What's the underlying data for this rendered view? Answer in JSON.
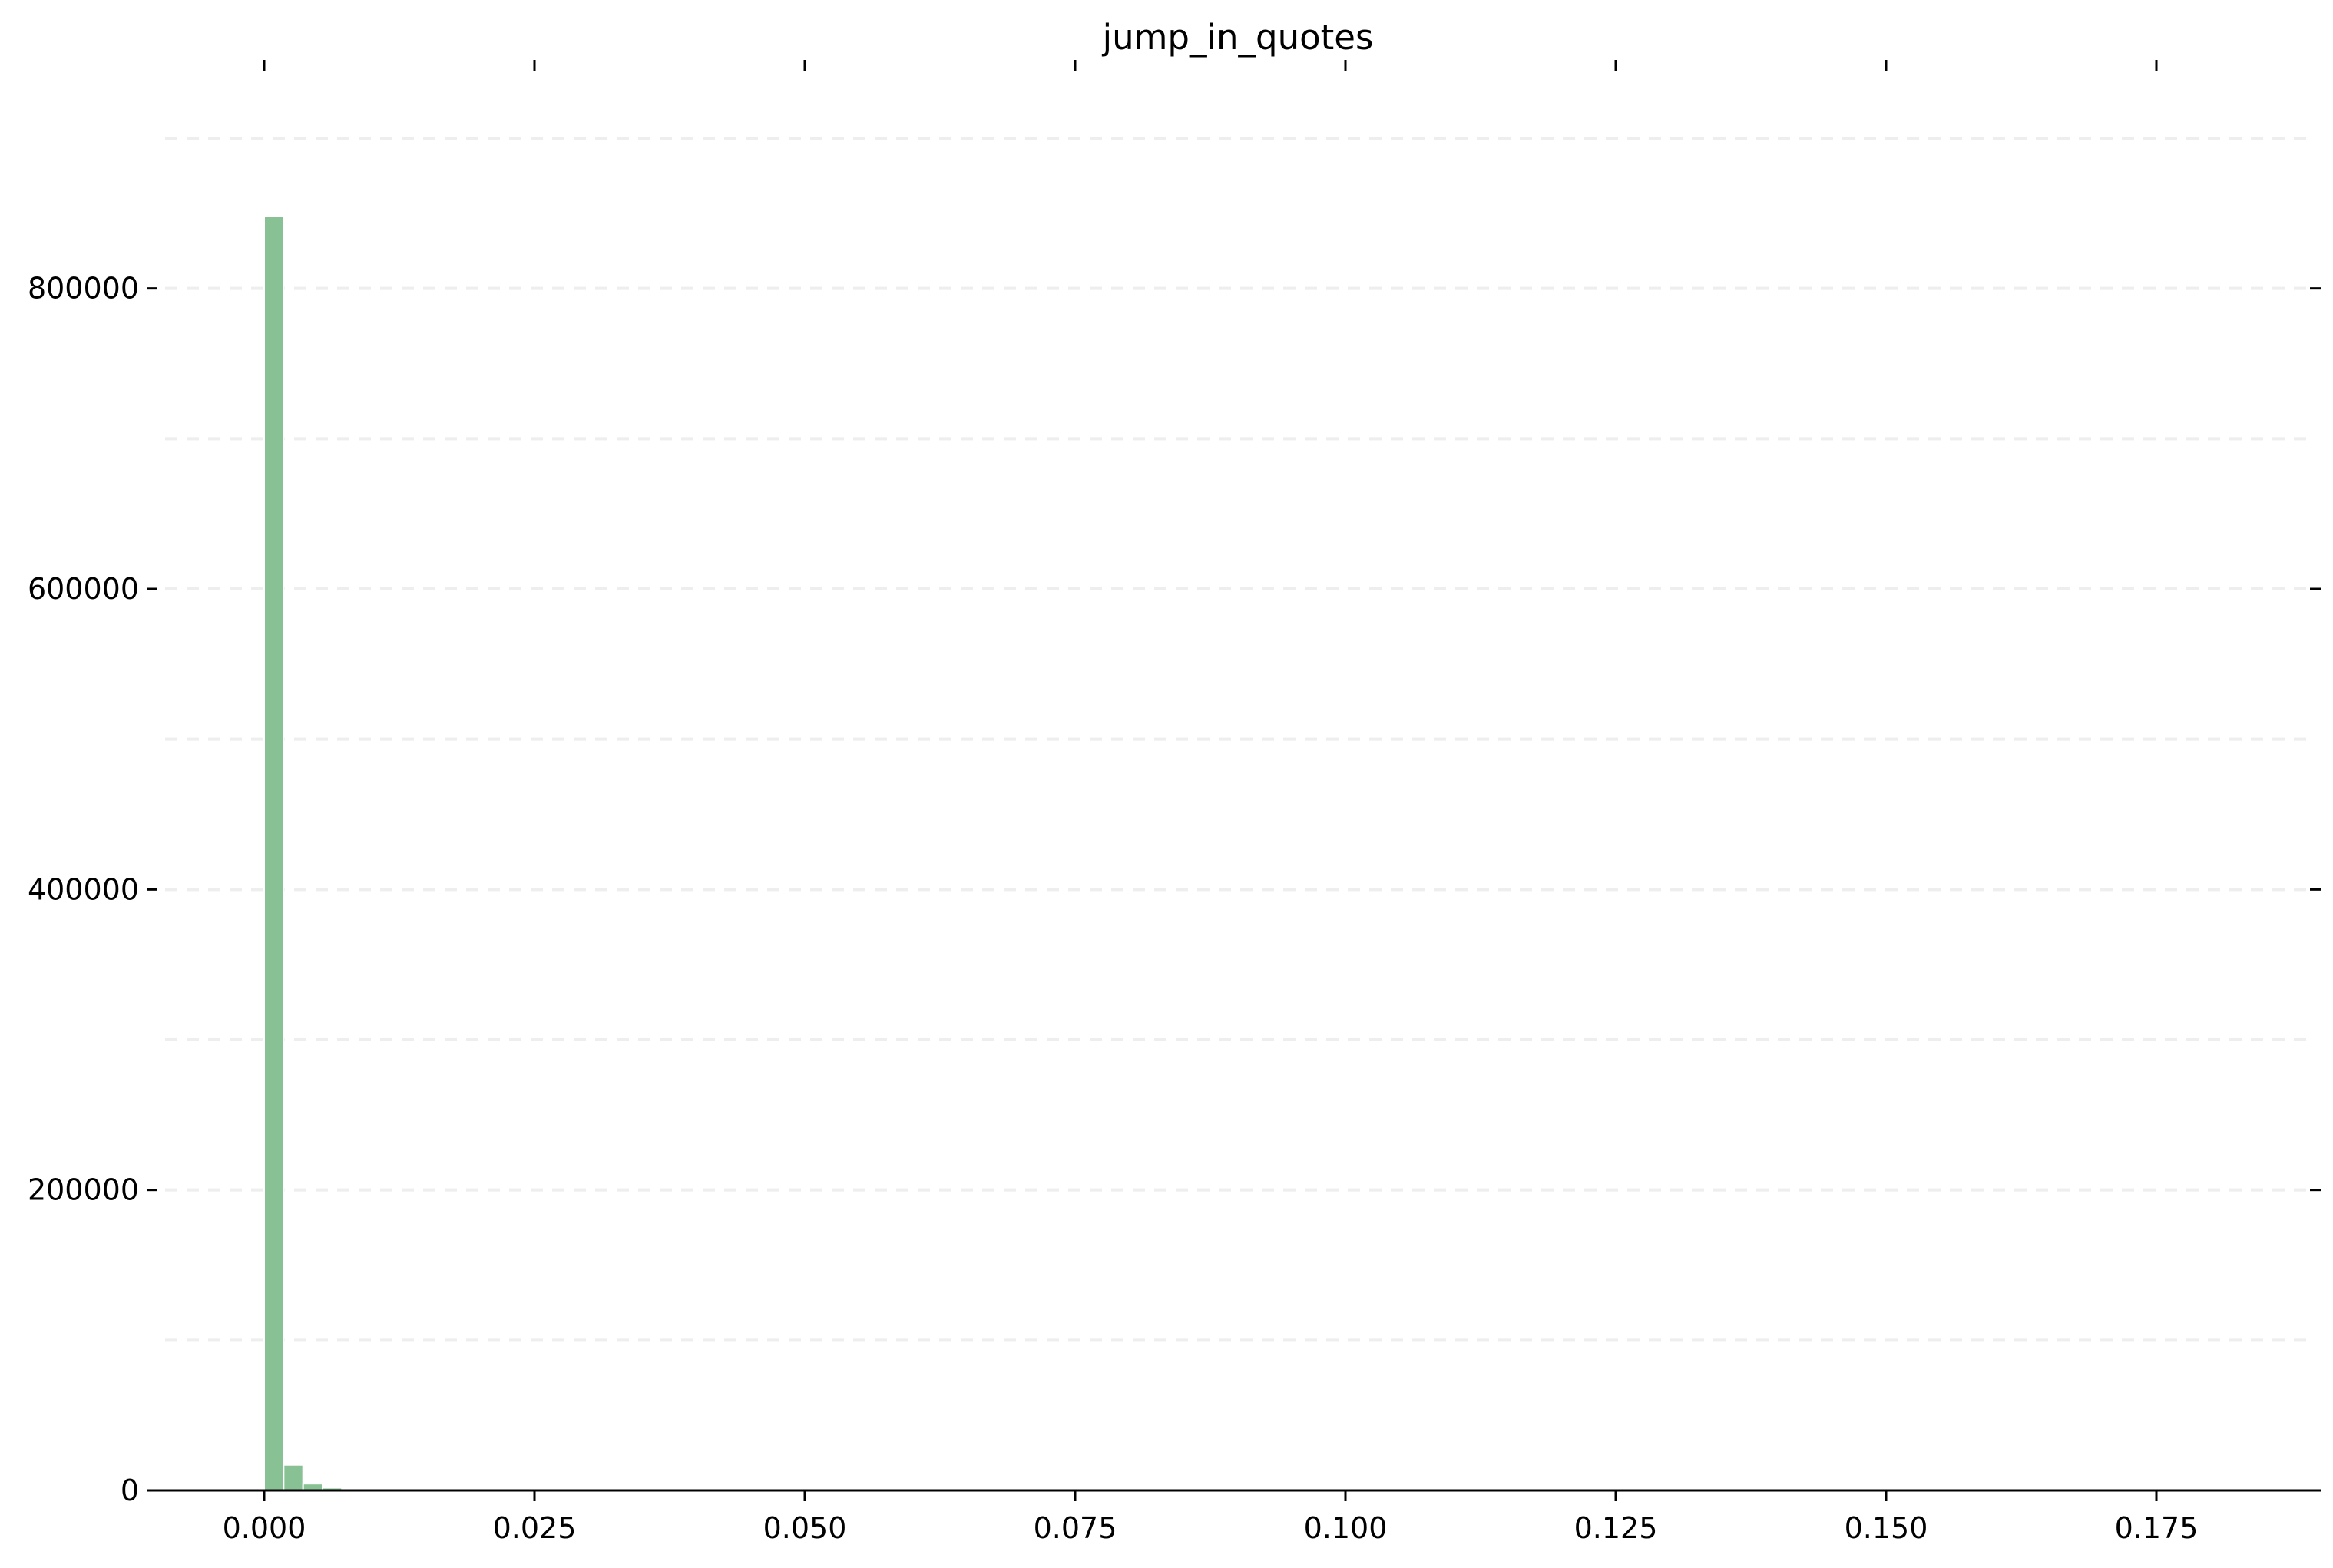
{
  "chart_data": {
    "type": "bar",
    "title": "jump_in_quotes",
    "xlabel": "",
    "ylabel": "",
    "bar_color": "#88c193",
    "bar_edge_color": "#ffffff",
    "grid": true,
    "grid_color": "#eeeeee",
    "xlim": [
      -0.0098,
      0.19
    ],
    "ylim": [
      0,
      900000
    ],
    "bin_width": 0.0018,
    "bins": [
      {
        "x": 0.0,
        "count": 848000
      },
      {
        "x": 0.0018,
        "count": 17000
      },
      {
        "x": 0.0036,
        "count": 4500
      },
      {
        "x": 0.0054,
        "count": 1800
      },
      {
        "x": 0.0072,
        "count": 800
      },
      {
        "x": 0.009,
        "count": 350
      }
    ],
    "xticks": [
      {
        "value": 0.0,
        "label": "0.000"
      },
      {
        "value": 0.025,
        "label": "0.025"
      },
      {
        "value": 0.05,
        "label": "0.050"
      },
      {
        "value": 0.075,
        "label": "0.075"
      },
      {
        "value": 0.1,
        "label": "0.100"
      },
      {
        "value": 0.125,
        "label": "0.125"
      },
      {
        "value": 0.15,
        "label": "0.150"
      },
      {
        "value": 0.175,
        "label": "0.175"
      }
    ],
    "yticks": [
      {
        "value": 0,
        "label": "0"
      },
      {
        "value": 200000,
        "label": "200000"
      },
      {
        "value": 400000,
        "label": "400000"
      },
      {
        "value": 600000,
        "label": "600000"
      },
      {
        "value": 800000,
        "label": "800000"
      }
    ],
    "ygrid": [
      100000,
      200000,
      300000,
      400000,
      500000,
      600000,
      700000,
      800000,
      900000
    ]
  }
}
